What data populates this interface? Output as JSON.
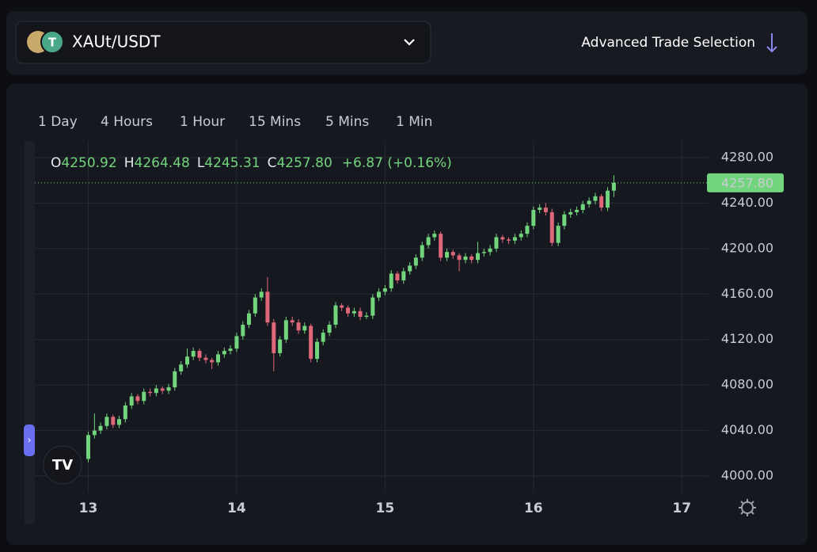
{
  "header": {
    "pair": "XAUt/USDT",
    "advanced": "Advanced Trade Selection"
  },
  "timeframes": {
    "items": [
      "1 Day",
      "4 Hours",
      "1 Hour",
      "15 Mins",
      "5 Mins",
      "1 Min"
    ],
    "active": 2
  },
  "ohlc": {
    "o_label": "O",
    "o": "4250.92",
    "h_label": "H",
    "h": "4264.48",
    "l_label": "L",
    "l": "4245.31",
    "c_label": "C",
    "c": "4257.80",
    "change": "+6.87 (+0.16%)"
  },
  "chart_data": {
    "type": "candlestick",
    "candles": [
      [
        13,
        4015,
        4039,
        4012,
        4036
      ],
      [
        13.042,
        4036,
        4055,
        4033,
        4040
      ],
      [
        13.083,
        4040,
        4047,
        4037,
        4044
      ],
      [
        13.125,
        4044,
        4055,
        4041,
        4052
      ],
      [
        13.167,
        4052,
        4054,
        4042,
        4045
      ],
      [
        13.208,
        4045,
        4053,
        4042,
        4050
      ],
      [
        13.25,
        4050,
        4065,
        4047,
        4062
      ],
      [
        13.292,
        4062,
        4073,
        4059,
        4070
      ],
      [
        13.333,
        4070,
        4072,
        4063,
        4066
      ],
      [
        13.375,
        4066,
        4077,
        4063,
        4074
      ],
      [
        13.417,
        4074,
        4077,
        4070,
        4073
      ],
      [
        13.458,
        4073,
        4080,
        4070,
        4077
      ],
      [
        13.5,
        4077,
        4079,
        4072,
        4075
      ],
      [
        13.542,
        4075,
        4081,
        4072,
        4078
      ],
      [
        13.583,
        4078,
        4095,
        4075,
        4092
      ],
      [
        13.625,
        4092,
        4101,
        4089,
        4098
      ],
      [
        13.667,
        4098,
        4112,
        4095,
        4105
      ],
      [
        13.708,
        4105,
        4113,
        4102,
        4110
      ],
      [
        13.75,
        4110,
        4112,
        4101,
        4104
      ],
      [
        13.792,
        4104,
        4107,
        4099,
        4102
      ],
      [
        13.833,
        4102,
        4104,
        4094,
        4100
      ],
      [
        13.875,
        4100,
        4110,
        4097,
        4107
      ],
      [
        13.917,
        4107,
        4113,
        4104,
        4110
      ],
      [
        13.958,
        4110,
        4115,
        4107,
        4112
      ],
      [
        14,
        4112,
        4126,
        4109,
        4123
      ],
      [
        14.042,
        4123,
        4136,
        4120,
        4133
      ],
      [
        14.083,
        4133,
        4146,
        4130,
        4143
      ],
      [
        14.125,
        4143,
        4160,
        4140,
        4157
      ],
      [
        14.167,
        4157,
        4165,
        4154,
        4162
      ],
      [
        14.208,
        4162,
        4175,
        4132,
        4135
      ],
      [
        14.25,
        4135,
        4138,
        4092,
        4108
      ],
      [
        14.292,
        4108,
        4123,
        4105,
        4120
      ],
      [
        14.333,
        4120,
        4140,
        4117,
        4137
      ],
      [
        14.375,
        4137,
        4140,
        4132,
        4135
      ],
      [
        14.417,
        4135,
        4138,
        4125,
        4128
      ],
      [
        14.458,
        4128,
        4135,
        4125,
        4132
      ],
      [
        14.5,
        4132,
        4134,
        4100,
        4103
      ],
      [
        14.542,
        4103,
        4121,
        4100,
        4118
      ],
      [
        14.583,
        4118,
        4129,
        4115,
        4126
      ],
      [
        14.625,
        4126,
        4136,
        4123,
        4133
      ],
      [
        14.667,
        4133,
        4153,
        4130,
        4150
      ],
      [
        14.708,
        4150,
        4152,
        4145,
        4148
      ],
      [
        14.75,
        4148,
        4150,
        4140,
        4143
      ],
      [
        14.792,
        4143,
        4148,
        4140,
        4145
      ],
      [
        14.833,
        4145,
        4148,
        4137,
        4140
      ],
      [
        14.875,
        4140,
        4144,
        4138,
        4141
      ],
      [
        14.917,
        4141,
        4160,
        4138,
        4157
      ],
      [
        14.958,
        4157,
        4165,
        4154,
        4162
      ],
      [
        15,
        4162,
        4168,
        4159,
        4165
      ],
      [
        15.042,
        4165,
        4181,
        4162,
        4178
      ],
      [
        15.083,
        4178,
        4180,
        4169,
        4172
      ],
      [
        15.125,
        4172,
        4183,
        4169,
        4180
      ],
      [
        15.167,
        4180,
        4188,
        4177,
        4185
      ],
      [
        15.208,
        4185,
        4195,
        4182,
        4192
      ],
      [
        15.25,
        4192,
        4206,
        4189,
        4203
      ],
      [
        15.292,
        4203,
        4213,
        4200,
        4210
      ],
      [
        15.333,
        4210,
        4216,
        4207,
        4213
      ],
      [
        15.375,
        4213,
        4215,
        4189,
        4192
      ],
      [
        15.417,
        4192,
        4200,
        4189,
        4197
      ],
      [
        15.458,
        4197,
        4199,
        4191,
        4194
      ],
      [
        15.5,
        4194,
        4196,
        4180,
        4190
      ],
      [
        15.542,
        4190,
        4196,
        4187,
        4193
      ],
      [
        15.583,
        4193,
        4195,
        4187,
        4190
      ],
      [
        15.625,
        4190,
        4206,
        4187,
        4196
      ],
      [
        15.667,
        4196,
        4200,
        4193,
        4197
      ],
      [
        15.708,
        4197,
        4203,
        4194,
        4200
      ],
      [
        15.75,
        4200,
        4213,
        4197,
        4210
      ],
      [
        15.792,
        4210,
        4212,
        4205,
        4208
      ],
      [
        15.833,
        4208,
        4210,
        4204,
        4207
      ],
      [
        15.875,
        4207,
        4213,
        4204,
        4210
      ],
      [
        15.917,
        4210,
        4216,
        4207,
        4213
      ],
      [
        15.958,
        4213,
        4223,
        4210,
        4220
      ],
      [
        16,
        4220,
        4237,
        4217,
        4234
      ],
      [
        16.042,
        4234,
        4239,
        4231,
        4236
      ],
      [
        16.083,
        4236,
        4240,
        4229,
        4232
      ],
      [
        16.125,
        4232,
        4235,
        4202,
        4205
      ],
      [
        16.167,
        4205,
        4223,
        4202,
        4220
      ],
      [
        16.208,
        4220,
        4233,
        4217,
        4230
      ],
      [
        16.25,
        4230,
        4235,
        4227,
        4232
      ],
      [
        16.292,
        4232,
        4237,
        4229,
        4234
      ],
      [
        16.333,
        4234,
        4242,
        4231,
        4239
      ],
      [
        16.375,
        4239,
        4245,
        4236,
        4242
      ],
      [
        16.417,
        4242,
        4249,
        4239,
        4246
      ],
      [
        16.458,
        4246,
        4248,
        4233,
        4236
      ],
      [
        16.5,
        4236,
        4254,
        4233,
        4250.92
      ],
      [
        16.542,
        4250.92,
        4264.48,
        4245.31,
        4257.8
      ]
    ],
    "xlim": [
      12.64,
      17.18
    ],
    "xticks": [
      13,
      14,
      15,
      16,
      17
    ],
    "ylim": [
      3985.4,
      4294.6
    ],
    "yticks": [
      {
        "value": 4000,
        "label": "4000.00"
      },
      {
        "value": 4040,
        "label": "4040.00"
      },
      {
        "value": 4080,
        "label": "4080.00"
      },
      {
        "value": 4120,
        "label": "4120.00"
      },
      {
        "value": 4160,
        "label": "4160.00"
      },
      {
        "value": 4200,
        "label": "4200.00"
      },
      {
        "value": 4240,
        "label": "4240.00"
      },
      {
        "value": 4280,
        "label": "4280.00"
      }
    ],
    "price_label": "4257.80",
    "up_color": "#72d47c",
    "down_color": "#e0677a",
    "grid": true
  }
}
